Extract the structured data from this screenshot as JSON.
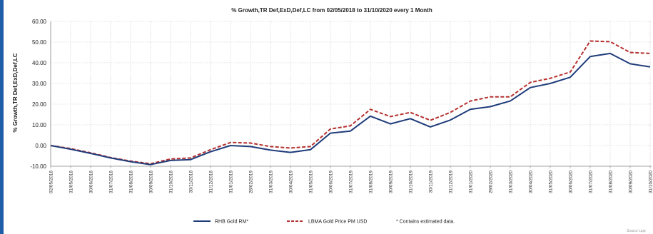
{
  "chart_data": {
    "type": "line",
    "title": "% Growth,TR Def,ExD,Def,LC from 02/05/2018 to 31/10/2020 every 1 Month",
    "ylabel": "% Growth,TR Def,ExD,Def,LC",
    "xlabel": "",
    "ylim": [
      -10,
      60
    ],
    "yticks": [
      -10,
      0,
      10,
      20,
      30,
      40,
      50,
      60
    ],
    "ytick_labels": [
      "-10.00",
      "0.00",
      "10.00",
      "20.00",
      "30.00",
      "40.00",
      "50.00",
      "60.00"
    ],
    "grid": true,
    "legend_position": "bottom",
    "x": [
      "02/05/2018",
      "31/05/2018",
      "30/06/2018",
      "31/07/2018",
      "31/08/2018",
      "30/09/2018",
      "31/10/2018",
      "30/11/2018",
      "31/12/2018",
      "31/01/2019",
      "28/02/2019",
      "31/03/2019",
      "30/04/2019",
      "31/05/2019",
      "30/06/2019",
      "31/07/2019",
      "31/08/2019",
      "30/09/2019",
      "31/10/2019",
      "30/11/2019",
      "31/12/2019",
      "31/01/2020",
      "29/02/2020",
      "31/03/2020",
      "30/04/2020",
      "31/05/2020",
      "30/06/2020",
      "31/07/2020",
      "31/08/2020",
      "30/09/2020",
      "31/10/2020"
    ],
    "series": [
      {
        "name": "RHB Gold RM*",
        "color": "#1f3c7a",
        "style": "solid",
        "values": [
          0,
          -1.8,
          -3.8,
          -6,
          -7.8,
          -9.2,
          -7.2,
          -6.8,
          -3,
          0,
          -0.5,
          -2.2,
          -3.3,
          -2,
          6,
          7,
          14.2,
          10.5,
          13,
          9,
          12.3,
          17.5,
          18.8,
          21.5,
          28,
          30,
          33,
          43,
          44.5,
          39.5,
          38
        ]
      },
      {
        "name": "LBMA Gold Price PM USD",
        "color": "#b5302f",
        "style": "dashed",
        "values": [
          0,
          -1.5,
          -3.5,
          -5.8,
          -7.5,
          -8.8,
          -6.5,
          -6,
          -2,
          1.5,
          1.2,
          -0.5,
          -1.2,
          -0.5,
          8,
          9.5,
          17.5,
          14,
          16,
          12.2,
          16,
          21.5,
          23.5,
          23.5,
          30.5,
          32.5,
          35.5,
          50.5,
          50.2,
          45,
          44.5
        ]
      }
    ],
    "note": "*  Contains estimated data.",
    "source": "Source Lipp"
  }
}
